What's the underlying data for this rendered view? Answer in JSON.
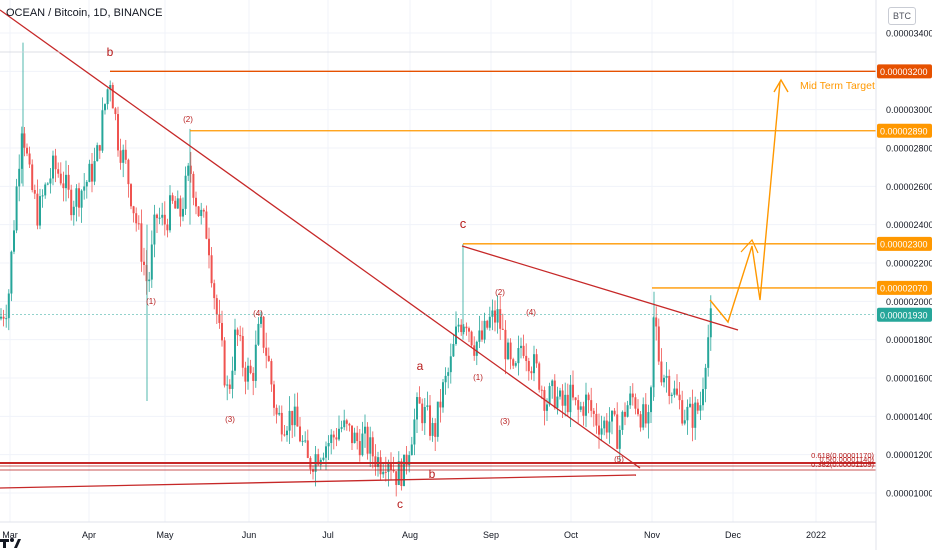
{
  "header": {
    "title": "OCEAN / Bitcoin, 1D, BINANCE"
  },
  "axis": {
    "currency_button": "BTC"
  },
  "chart_data": {
    "type": "candlestick",
    "title": "OCEAN / Bitcoin, 1D, BINANCE",
    "x_ticks": [
      "Mar",
      "Apr",
      "May",
      "Jun",
      "Jul",
      "Aug",
      "Sep",
      "Oct",
      "Nov",
      "Dec",
      "2022"
    ],
    "y_ticks": [
      "0.00001000",
      "0.00001200",
      "0.00001400",
      "0.00001600",
      "0.00001800",
      "0.00002000",
      "0.00002200",
      "0.00002400",
      "0.00002600",
      "0.00002800",
      "0.00003000",
      "0.00003200",
      "0.00003400"
    ],
    "ylim": [
      9.8e-06,
      3.53e-05
    ],
    "last_price": "0.00001930",
    "levels": [
      {
        "value": 3.2e-05,
        "label": "0.00003200",
        "color": "#e65100"
      },
      {
        "value": 2.89e-05,
        "label": "0.00002890",
        "color": "#ff9800"
      },
      {
        "value": 2.3e-05,
        "label": "0.00002300",
        "color": "#ff9800"
      },
      {
        "value": 2.07e-05,
        "label": "0.00002070",
        "color": "#ff9800"
      }
    ],
    "fib_labels": [
      "0.618(0.00001170)",
      "0.5(0.00001140)",
      "0.382(0.00001109)"
    ],
    "wave_labels": [
      "b",
      "(2)",
      "(1)",
      "(4)",
      "(3)",
      "c",
      "a",
      "(2)",
      "(4)",
      "(1)",
      "(3)",
      "b",
      "c",
      "(5)"
    ],
    "annotations": [
      "Mid Term Target"
    ],
    "series": [
      {
        "name": "Candles",
        "ohlc_note": "daily candles, green up / red down",
        "up_color": "#26a69a",
        "down_color": "#ef5350"
      }
    ]
  }
}
